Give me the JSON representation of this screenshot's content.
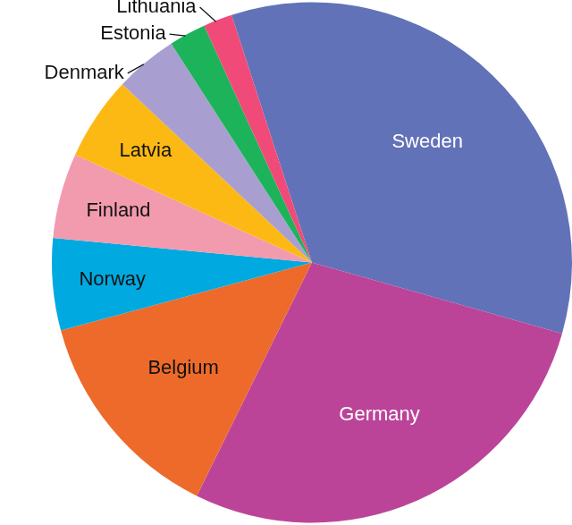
{
  "chart_data": {
    "type": "pie",
    "categories": [
      "Sweden",
      "Germany",
      "Belgium",
      "Norway",
      "Finland",
      "Latvia",
      "Denmark",
      "Estonia",
      "Lithuania"
    ],
    "values": [
      34.4,
      27.9,
      13.5,
      5.7,
      5.3,
      5.2,
      3.9,
      2.3,
      1.8
    ],
    "colors": [
      "#6272b8",
      "#bb4499",
      "#ee6a2a",
      "#00a9e0",
      "#f29aae",
      "#fdb913",
      "#a89fd0",
      "#1db35a",
      "#ef4a78"
    ]
  }
}
